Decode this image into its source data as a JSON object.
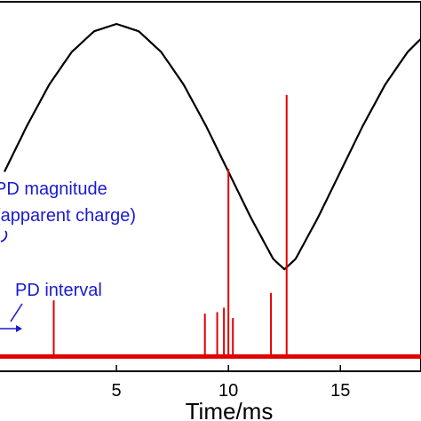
{
  "chart_data": {
    "type": "line",
    "title": "",
    "xlabel": "Time/ms",
    "ylabel": "",
    "xlim": [
      -0.2,
      18.6
    ],
    "ylim": [
      -1.35,
      1.15
    ],
    "x_ticks": [
      5,
      10,
      15
    ],
    "x_tick_labels": [
      "5",
      "10",
      "15"
    ],
    "grid": false,
    "series": [
      {
        "kind": "line",
        "color": "#000000",
        "x": [
          0,
          1,
          2,
          3,
          4,
          5,
          6,
          7,
          8,
          9,
          10,
          11,
          12,
          12.5,
          13,
          14,
          15,
          16,
          17,
          18,
          18.6
        ],
        "y": [
          0.0,
          0.31,
          0.59,
          0.81,
          0.95,
          1.0,
          0.95,
          0.81,
          0.59,
          0.31,
          0.0,
          -0.31,
          -0.59,
          -0.66,
          -0.59,
          -0.31,
          0.0,
          0.31,
          0.59,
          0.81,
          0.9
        ]
      },
      {
        "kind": "pulses",
        "color": "#e00000",
        "baseline": -1.25,
        "x": [
          2.2,
          8.95,
          9.5,
          9.8,
          10.0,
          10.2,
          11.9,
          12.6
        ],
        "y": [
          -0.87,
          -0.96,
          -0.95,
          -0.92,
          0.02,
          -0.99,
          -0.82,
          0.52
        ]
      }
    ],
    "annotations": [
      {
        "id": "pd_magnitude_line1",
        "text": "PD magnitude"
      },
      {
        "id": "pd_magnitude_line2",
        "text": "(apparent charge)"
      },
      {
        "id": "pd_interval",
        "text": "PD interval"
      }
    ]
  }
}
